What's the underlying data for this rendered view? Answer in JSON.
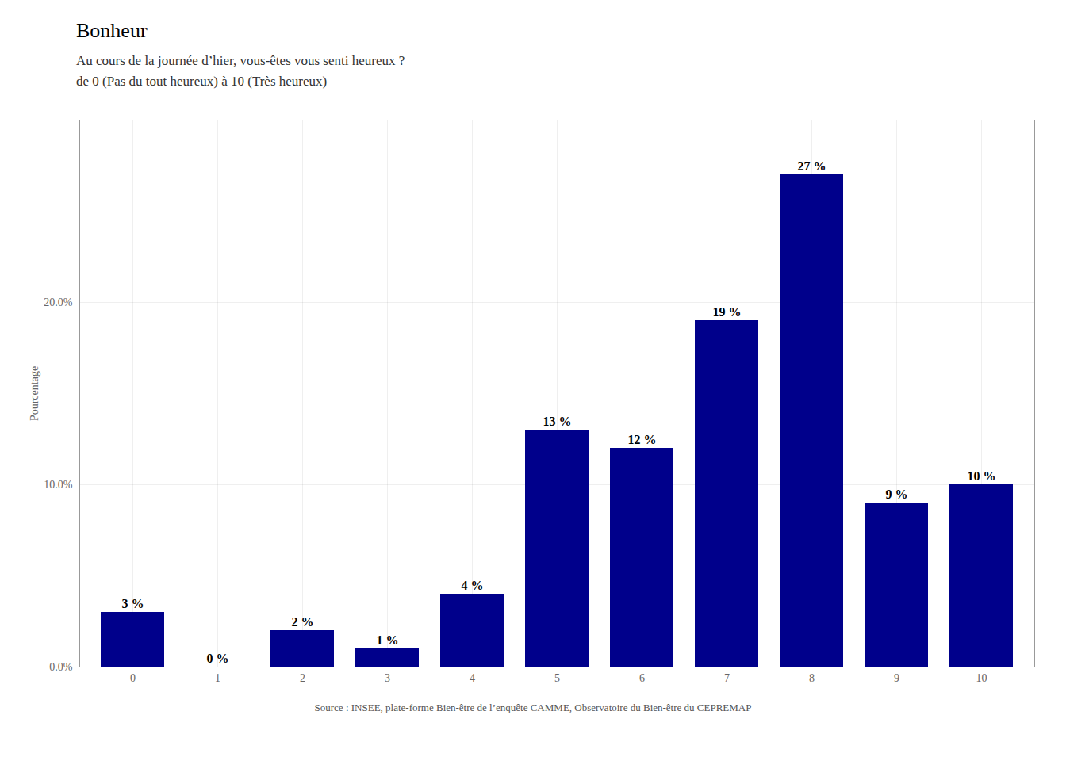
{
  "chart_data": {
    "type": "bar",
    "title": "Bonheur",
    "subtitle": "Au cours de la journée d’hier, vous-êtes vous senti heureux ?\nde 0 (Pas du tout heureux) à 10 (Très heureux)",
    "source": "Source : INSEE, plate-forme Bien-être de l’enquête CAMME, Observatoire du Bien-être du CEPREMAP",
    "ylabel": "Pourcentage",
    "categories": [
      "0",
      "1",
      "2",
      "3",
      "4",
      "5",
      "6",
      "7",
      "8",
      "9",
      "10"
    ],
    "values": [
      3,
      0,
      2,
      1,
      4,
      13,
      12,
      19,
      27,
      9,
      10
    ],
    "value_labels": [
      "3 %",
      "0 %",
      "2 %",
      "1 %",
      "4 %",
      "13 %",
      "12 %",
      "19 %",
      "27 %",
      "9 %",
      "10 %"
    ],
    "data_labels": true,
    "color": "#00008B",
    "ylim": [
      0,
      30
    ],
    "yticks": [
      {
        "value": 0,
        "label": "0.0%"
      },
      {
        "value": 10,
        "label": "10.0%"
      },
      {
        "value": 20,
        "label": "20.0%"
      }
    ],
    "grid": true
  }
}
